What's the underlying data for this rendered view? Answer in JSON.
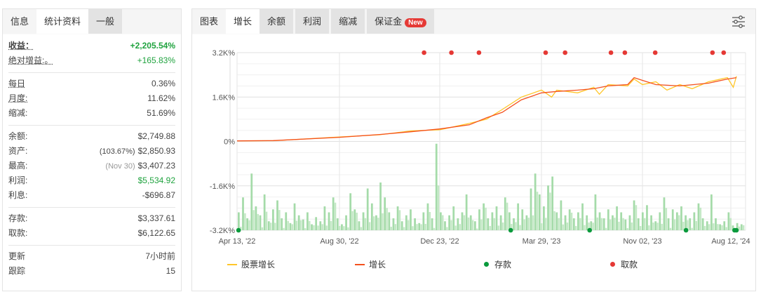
{
  "left": {
    "tabs": [
      "信息",
      "统计资料",
      "一般"
    ],
    "rows": [
      {
        "label": "收益：",
        "value": "+2,205.54%",
        "style": "green bold",
        "dot": true
      },
      {
        "label": "绝对增益:。",
        "value": "+165.83%",
        "style": "green",
        "dot": true
      },
      {
        "sep": true
      },
      {
        "label": "每日",
        "value": "0.36%",
        "dot": true
      },
      {
        "label": "月度:",
        "value": "11.62%",
        "dot": true
      },
      {
        "label": "缩减:",
        "value": "51.69%"
      },
      {
        "sep": true
      },
      {
        "label": "余额:",
        "value": "$2,749.88"
      },
      {
        "label": "资产:",
        "note": "(103.67%)",
        "value": "$2,850.93"
      },
      {
        "label": "最高:",
        "note": "(Nov 30)",
        "value": "$3,407.23",
        "noteMuted": true
      },
      {
        "label": "利润:",
        "value": "$5,534.92",
        "style": "green"
      },
      {
        "label": "利息:",
        "value": "-$696.87"
      },
      {
        "sep": true
      },
      {
        "label": "存款:",
        "value": "$3,337.61"
      },
      {
        "label": "取款:",
        "value": "$6,122.65"
      },
      {
        "sep": true
      },
      {
        "label": "更新",
        "value": "7小时前"
      },
      {
        "label": "跟踪",
        "value": "15"
      }
    ]
  },
  "right": {
    "tabs": [
      "图表",
      "增长",
      "余额",
      "利润",
      "缩减",
      "保证金"
    ],
    "active_tab": "增长",
    "new_badge": "New",
    "settings_icon": "sliders-icon"
  },
  "chart_data": {
    "type": "line",
    "y_ticks": [
      "3.2K%",
      "1.6K%",
      "0%",
      "-1.6K%",
      "-3.2K%"
    ],
    "ylim": [
      -3200,
      3200
    ],
    "x_ticks": [
      [
        "2022-04-13",
        "Apr 13, '22"
      ],
      [
        "2022-08-30",
        "Aug 30, '22"
      ],
      [
        "2022-12-23",
        "Dec 23, '22"
      ],
      [
        "2023-03-29",
        "Mar 29, '23"
      ],
      [
        "2023-11-02",
        "Nov 02, '23"
      ],
      [
        "2024-08-12",
        "Aug 12, '24"
      ]
    ],
    "x_end": "2024-09-01",
    "grid": true,
    "legend": {
      "placement": "bottom",
      "items": [
        {
          "name": "股票增长",
          "color": "#ffc629",
          "kind": "line"
        },
        {
          "name": "增长",
          "color": "#f4511e",
          "kind": "line"
        },
        {
          "name": "存款",
          "color": "#0a9a3c",
          "kind": "dot"
        },
        {
          "name": "取款",
          "color": "#e53935",
          "kind": "dot"
        }
      ]
    },
    "series": [
      {
        "name": "增长",
        "color": "#f4511e",
        "points": [
          [
            "2022-04-13",
            20
          ],
          [
            "2022-06-01",
            30
          ],
          [
            "2022-08-30",
            150
          ],
          [
            "2022-10-15",
            250
          ],
          [
            "2022-11-20",
            350
          ],
          [
            "2022-12-23",
            450
          ],
          [
            "2023-01-20",
            600
          ],
          [
            "2023-02-05",
            850
          ],
          [
            "2023-02-20",
            1050
          ],
          [
            "2023-03-10",
            1500
          ],
          [
            "2023-03-29",
            1750
          ],
          [
            "2023-05-01",
            1800
          ],
          [
            "2023-06-15",
            1850
          ],
          [
            "2023-07-20",
            1900
          ],
          [
            "2023-08-20",
            2000
          ],
          [
            "2023-10-01",
            2050
          ],
          [
            "2023-10-15",
            2300
          ],
          [
            "2023-11-02",
            2200
          ],
          [
            "2023-12-15",
            2050
          ],
          [
            "2024-03-01",
            2000
          ],
          [
            "2024-06-01",
            2100
          ],
          [
            "2024-08-01",
            2250
          ],
          [
            "2024-08-30",
            2300
          ]
        ]
      },
      {
        "name": "股票增长",
        "color": "#ffc629",
        "points": [
          [
            "2022-04-13",
            20
          ],
          [
            "2022-06-01",
            25
          ],
          [
            "2022-08-30",
            160
          ],
          [
            "2022-10-15",
            240
          ],
          [
            "2022-11-20",
            380
          ],
          [
            "2022-12-23",
            420
          ],
          [
            "2023-01-20",
            650
          ],
          [
            "2023-02-05",
            800
          ],
          [
            "2023-02-20",
            1150
          ],
          [
            "2023-03-10",
            1600
          ],
          [
            "2023-03-29",
            1850
          ],
          [
            "2023-04-20",
            1600
          ],
          [
            "2023-05-01",
            1850
          ],
          [
            "2023-06-15",
            1750
          ],
          [
            "2023-07-20",
            1950
          ],
          [
            "2023-08-01",
            1700
          ],
          [
            "2023-08-20",
            2050
          ],
          [
            "2023-10-01",
            2000
          ],
          [
            "2023-10-15",
            2250
          ],
          [
            "2023-11-02",
            2050
          ],
          [
            "2023-12-15",
            2150
          ],
          [
            "2024-01-20",
            1850
          ],
          [
            "2024-03-01",
            2050
          ],
          [
            "2024-04-10",
            1900
          ],
          [
            "2024-06-01",
            2150
          ],
          [
            "2024-08-01",
            2300
          ],
          [
            "2024-08-20",
            1950
          ],
          [
            "2024-08-30",
            2350
          ]
        ]
      }
    ],
    "deposits": [
      "2022-04-15",
      "2023-02-28",
      "2023-07-11",
      "2024-03-21",
      "2024-08-24",
      "2024-08-30"
    ],
    "withdrawals": [
      "2022-12-05",
      "2023-01-03",
      "2023-01-29",
      "2023-04-07",
      "2023-05-19",
      "2023-08-26",
      "2023-09-25",
      "2023-12-13",
      "2024-06-14",
      "2024-07-20"
    ],
    "bars_relative": [
      0.3,
      0.55,
      0.2,
      0.95,
      0.4,
      0.25,
      0.6,
      0.15,
      0.35,
      0.5,
      0.2,
      0.3,
      0.12,
      0.45,
      0.25,
      0.18,
      0.3,
      0.1,
      0.22,
      0.15,
      0.4,
      0.3,
      0.55,
      0.2,
      0.1,
      0.25,
      0.62,
      0.35,
      0.15,
      0.3,
      0.7,
      0.45,
      0.25,
      0.8,
      0.55,
      0.3,
      0.2,
      0.4,
      0.15,
      0.25,
      0.35,
      0.2,
      0.12,
      0.3,
      0.45,
      0.2,
      1.45,
      0.3,
      0.15,
      0.25,
      0.4,
      0.2,
      0.3,
      0.6,
      0.25,
      0.15,
      0.35,
      0.45,
      0.2,
      0.3,
      0.4,
      0.25,
      0.55,
      0.3,
      0.2,
      0.45,
      0.35,
      0.25,
      0.7,
      0.95,
      0.6,
      0.4,
      0.75,
      0.9,
      0.3,
      0.5,
      0.25,
      0.35,
      0.2,
      0.3,
      0.45,
      0.25,
      0.15,
      0.6,
      0.3,
      0.2,
      0.35,
      0.25,
      0.4,
      0.3,
      0.18,
      0.25,
      0.5,
      0.2,
      0.3,
      0.42,
      0.25,
      0.15,
      0.3,
      0.55,
      0.2,
      0.35,
      0.3,
      0.4,
      0.25,
      0.2,
      0.3,
      0.45,
      0.2,
      0.15,
      0.6,
      0.2,
      0.1,
      0.15,
      0.3,
      0.08,
      0.12,
      0.1
    ]
  }
}
